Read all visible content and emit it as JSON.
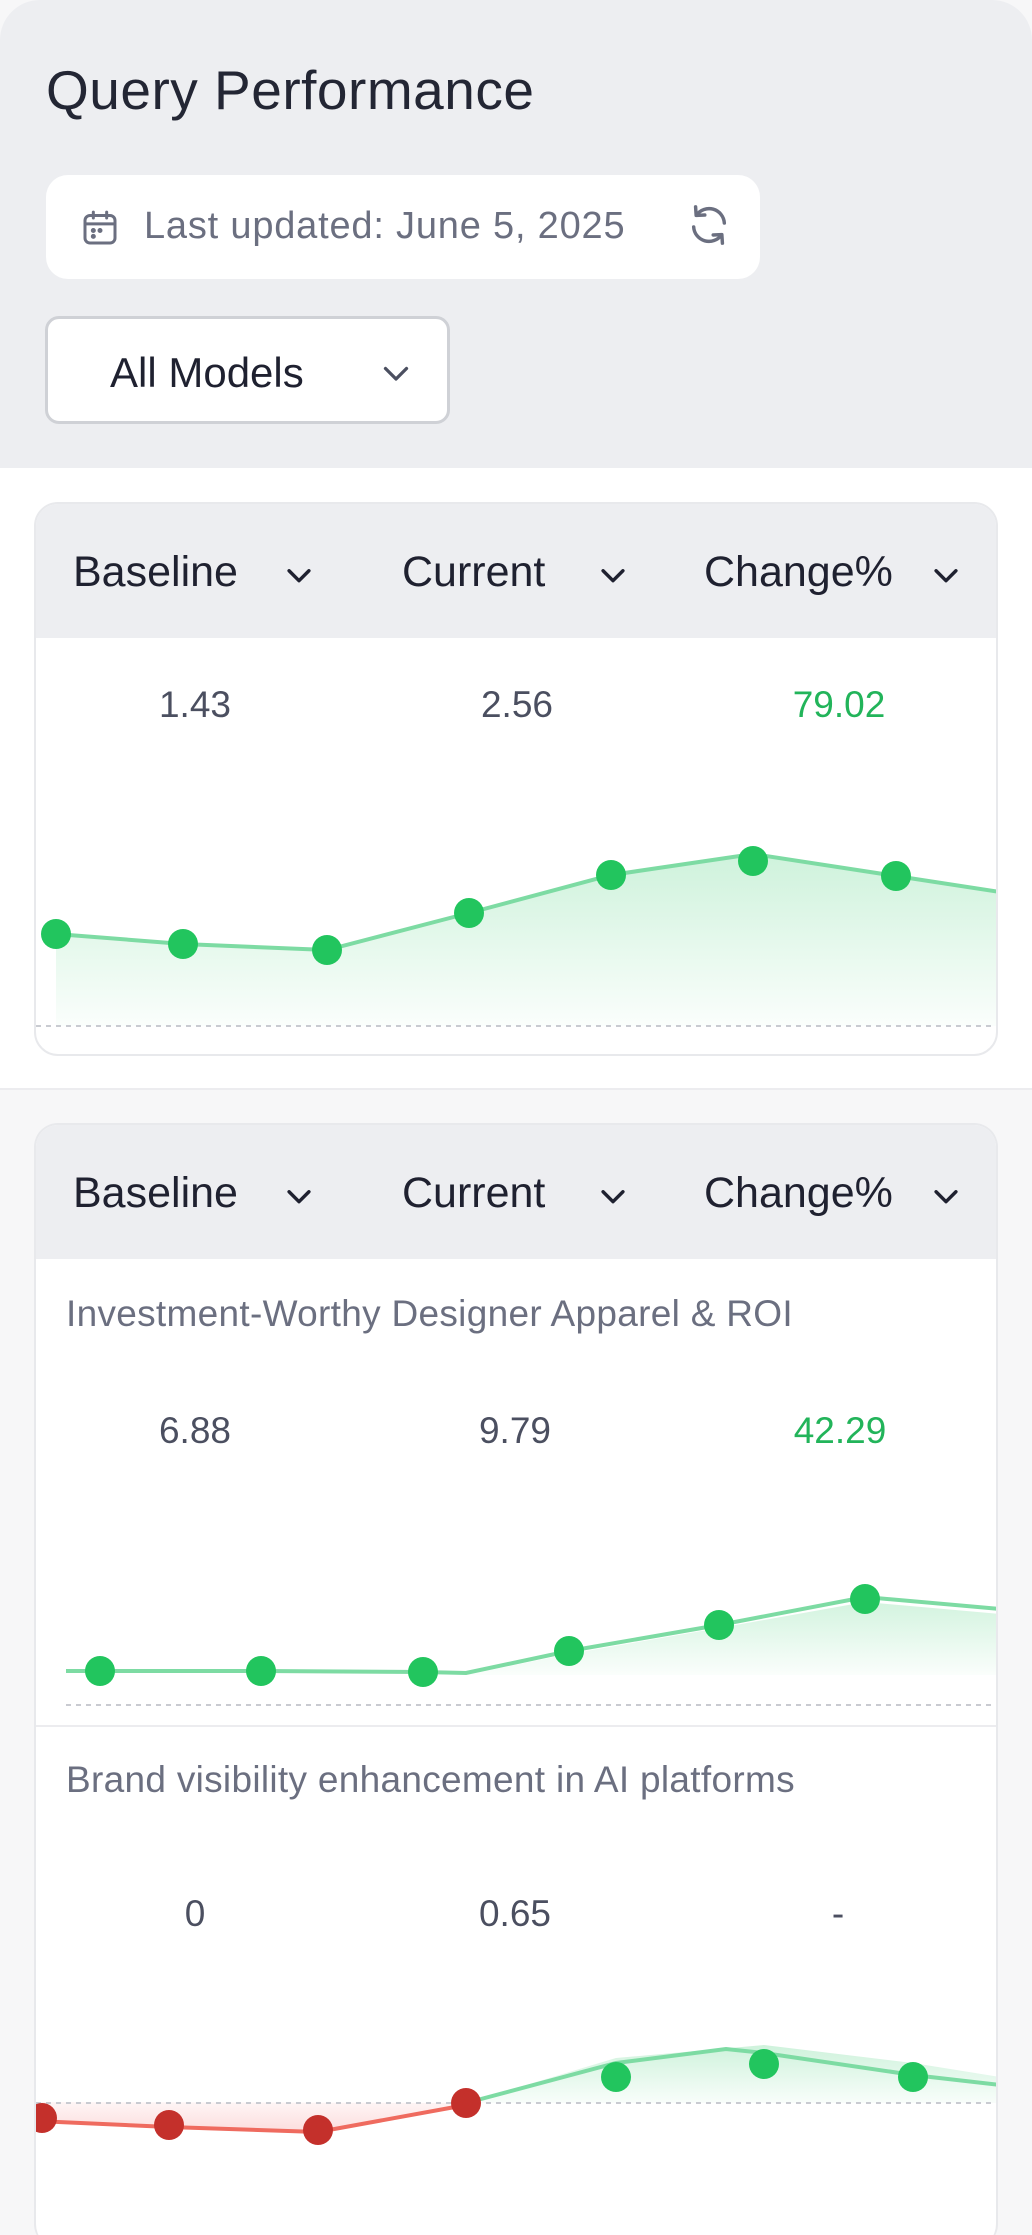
{
  "header": {
    "title": "Query Performance",
    "last_updated": "Last updated: June 5, 2025",
    "model_select": "All Models",
    "icons": [
      "calendar-icon",
      "refresh-icon",
      "chevron-down-icon"
    ]
  },
  "columns": [
    "Baseline",
    "Current",
    "Change%"
  ],
  "colors": {
    "positive": "#22c55e",
    "negative": "#c4302b",
    "positive_line": "#7ddba3",
    "negative_line": "#ef6b5f"
  },
  "overview": {
    "baseline": "1.43",
    "current": "2.56",
    "change": "79.02"
  },
  "queries": [
    {
      "name": "Investment-Worthy Designer Apparel & ROI",
      "baseline": "6.88",
      "current": "9.79",
      "change": "42.29"
    },
    {
      "name": "Brand visibility enhancement in AI platforms",
      "baseline": "0",
      "current": "0.65",
      "change": "-"
    }
  ]
}
